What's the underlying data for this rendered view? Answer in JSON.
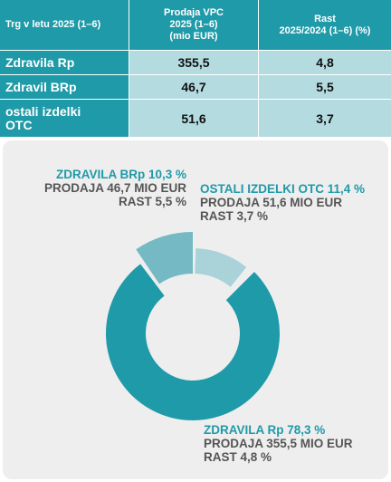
{
  "table": {
    "headers": [
      "Trg v letu 2025 (1–6)",
      "Prodaja VPC\n2025 (1–6)\n(mio EUR)",
      "Rast\n2025/2024 (1–6) (%)"
    ],
    "rows": [
      {
        "name": "Zdravila Rp",
        "sales": "355,5",
        "growth": "4,8"
      },
      {
        "name": "Zdravil BRp",
        "sales": "46,7",
        "growth": "5,5"
      },
      {
        "name": "ostali izdelki\nOTC",
        "sales": "51,6",
        "growth": "3,7"
      }
    ]
  },
  "chart_data": {
    "type": "pie",
    "slices": [
      {
        "name": "ZDRAVILA Rp",
        "share": 78.3,
        "share_label": "78,3 %",
        "sales_text": "PRODAJA 355,5 MIO EUR",
        "growth_text": "RAST 4,8 %",
        "color": "#1f9aa8"
      },
      {
        "name": "ZDRAVILA BRp",
        "share": 10.3,
        "share_label": "10,3 %",
        "sales_text": "PRODAJA 46,7 MIO EUR",
        "growth_text": "RAST 5,5 %",
        "color": "#74b9c3"
      },
      {
        "name": "OSTALI IZDELKI OTC",
        "share": 11.4,
        "share_label": "11,4 %",
        "sales_text": "PRODAJA 51,6 MIO EUR",
        "growth_text": "RAST 3,7 %",
        "color": "#a9d3d9"
      }
    ]
  }
}
